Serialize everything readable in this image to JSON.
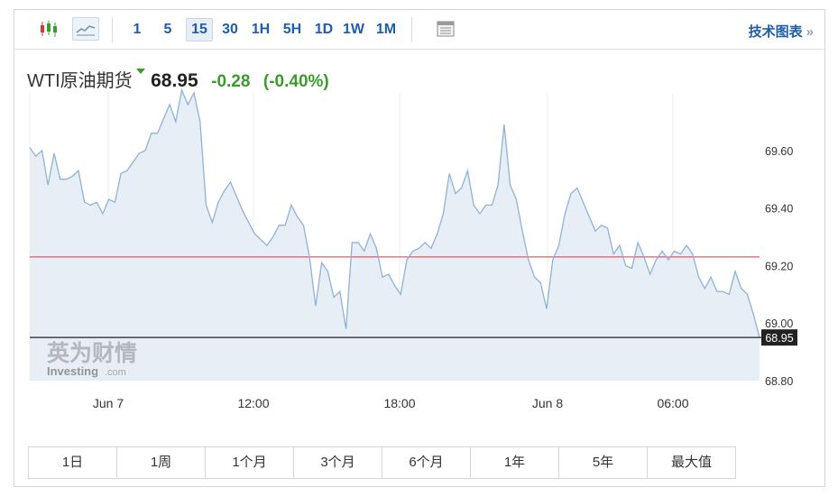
{
  "toolbar": {
    "chart_type_icons": [
      "candlestick-icon",
      "line-chart-icon"
    ],
    "intervals": [
      "1",
      "5",
      "15",
      "30",
      "1H",
      "5H",
      "1D",
      "1W",
      "1M"
    ],
    "active_interval": "15",
    "table_icon": "table-icon",
    "chart_link": "技术图表",
    "chart_link_arrow": "»"
  },
  "quote": {
    "name": "WTI原油期货",
    "price": "68.95",
    "change": "-0.28",
    "change_pct": "(-0.40%)",
    "direction_icon": "down-triangle-icon",
    "change_color": "#3c9a2e"
  },
  "watermark": {
    "cn": "英为财情",
    "en": "Investing",
    "en_suffix": ".com"
  },
  "ranges": [
    "1日",
    "1周",
    "1个月",
    "3个月",
    "6个月",
    "1年",
    "5年",
    "最大值"
  ],
  "chart_data": {
    "type": "area",
    "x_ticks": [
      "Jun 7",
      "12:00",
      "18:00",
      "Jun 8",
      "06:00"
    ],
    "y_ticks": [
      "69.60",
      "69.40",
      "69.20",
      "69.00",
      "68.80"
    ],
    "ylim": [
      68.8,
      69.8
    ],
    "previous_close": 69.23,
    "last_price": 68.95,
    "last_price_label": "68.95",
    "grid": "vertical",
    "line_color": "#8fb2d6",
    "fill_color": "#e7eef6",
    "prev_close_color": "#d23a3a",
    "values": [
      69.61,
      69.58,
      69.6,
      69.48,
      69.59,
      69.5,
      69.5,
      69.51,
      69.53,
      69.42,
      69.41,
      69.42,
      69.38,
      69.43,
      69.42,
      69.52,
      69.53,
      69.56,
      69.59,
      69.6,
      69.66,
      69.66,
      69.71,
      69.76,
      69.7,
      69.81,
      69.76,
      69.8,
      69.7,
      69.41,
      69.35,
      69.42,
      69.46,
      69.49,
      69.44,
      69.39,
      69.35,
      69.31,
      69.29,
      69.27,
      69.3,
      69.34,
      69.34,
      69.41,
      69.37,
      69.34,
      69.23,
      69.06,
      69.21,
      69.18,
      69.09,
      69.11,
      68.98,
      69.28,
      69.28,
      69.25,
      69.31,
      69.26,
      69.16,
      69.17,
      69.13,
      69.1,
      69.22,
      69.25,
      69.26,
      69.28,
      69.26,
      69.31,
      69.38,
      69.52,
      69.45,
      69.47,
      69.53,
      69.41,
      69.38,
      69.41,
      69.41,
      69.48,
      69.69,
      69.48,
      69.43,
      69.32,
      69.22,
      69.16,
      69.14,
      69.05,
      69.22,
      69.27,
      69.38,
      69.45,
      69.47,
      69.42,
      69.37,
      69.32,
      69.34,
      69.33,
      69.24,
      69.27,
      69.2,
      69.19,
      69.28,
      69.23,
      69.17,
      69.22,
      69.25,
      69.22,
      69.25,
      69.24,
      69.27,
      69.24,
      69.16,
      69.12,
      69.16,
      69.11,
      69.11,
      69.1,
      69.18,
      69.12,
      69.1,
      69.03,
      68.95
    ]
  }
}
